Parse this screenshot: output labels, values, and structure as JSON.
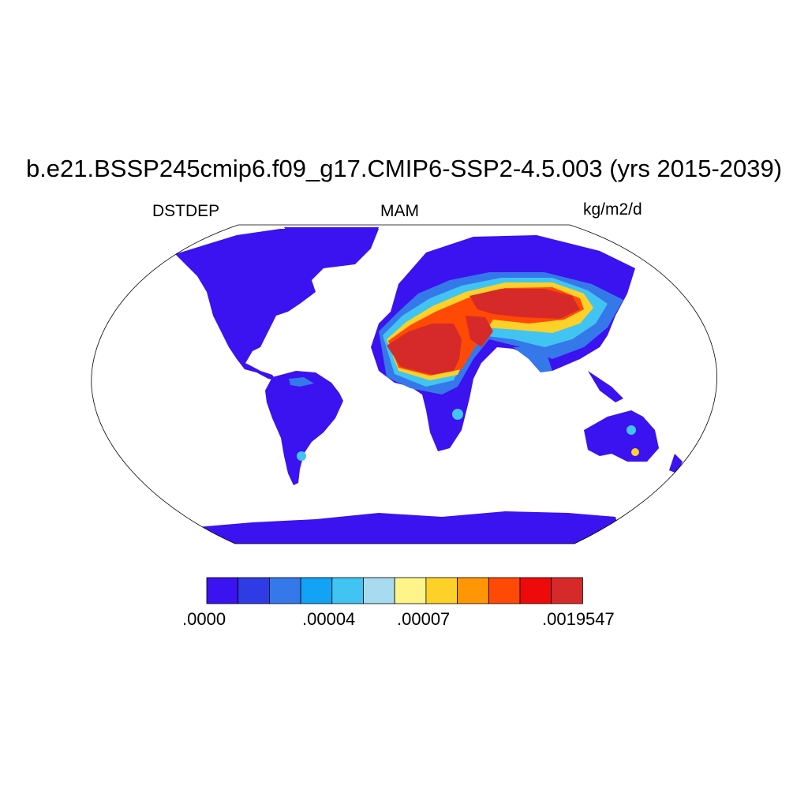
{
  "title": "b.e21.BSSP245cmip6.f09_g17.CMIP6-SSP2-4.5.003 (yrs 2015-2039)",
  "left_string": "DSTDEP",
  "center_string": "MAM",
  "right_string": "kg/m2/d",
  "colorbar": {
    "colors": [
      "#3b12f0",
      "#2f3ce6",
      "#3578ea",
      "#12a2f6",
      "#42c4f2",
      "#a8daf0",
      "#fff48a",
      "#fed128",
      "#fe9606",
      "#fe4a04",
      "#ee0a0a",
      "#d62a2a"
    ],
    "labels": [
      ".0000",
      ".00004",
      ".00007",
      ".0019547"
    ]
  }
}
